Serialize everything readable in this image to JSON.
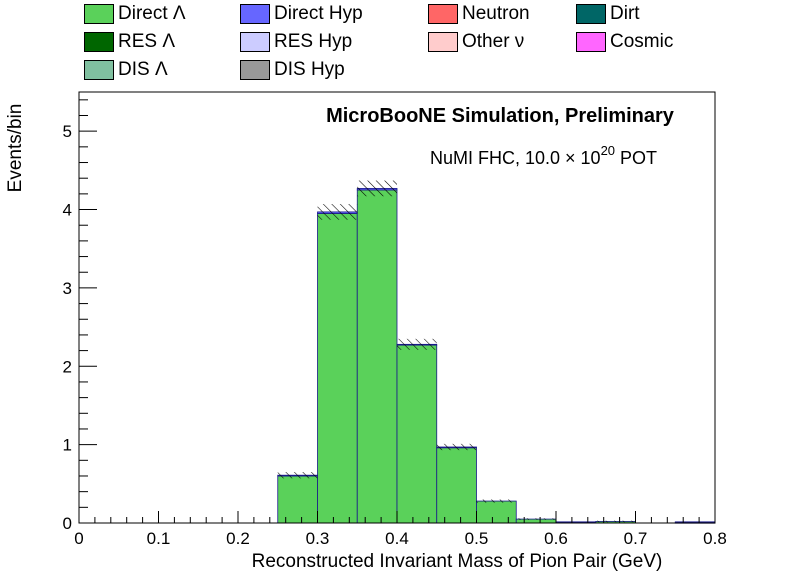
{
  "chart_data": {
    "type": "bar",
    "title": "MicroBooNE Simulation, Preliminary",
    "subtitle_prefix": "NuMI FHC, 10.0  × 10",
    "subtitle_exp": "20",
    "subtitle_suffix": " POT",
    "xlabel": "Reconstructed Invariant Mass of Pion Pair (GeV)",
    "ylabel": "Events/bin",
    "xlim": [
      0,
      0.8
    ],
    "ylim": [
      0,
      5.5
    ],
    "xticks": [
      "0",
      "0.1",
      "0.2",
      "0.3",
      "0.4",
      "0.5",
      "0.6",
      "0.7",
      "0.8"
    ],
    "yticks": [
      "0",
      "1",
      "2",
      "3",
      "4",
      "5"
    ],
    "bin_edges": [
      0,
      0.05,
      0.1,
      0.15,
      0.2,
      0.25,
      0.3,
      0.35,
      0.4,
      0.45,
      0.5,
      0.55,
      0.6,
      0.65,
      0.7,
      0.75,
      0.8
    ],
    "series": [
      {
        "name": "Direct Λ",
        "color": "#5ad15a",
        "values": [
          0,
          0,
          0,
          0,
          0,
          0.6,
          3.95,
          4.25,
          2.27,
          0.96,
          0.28,
          0.05,
          0.01,
          0.02,
          0,
          0.005
        ]
      },
      {
        "name": "Direct Hyp",
        "color": "#6666ff",
        "values": [
          0,
          0,
          0,
          0,
          0,
          0.01,
          0.02,
          0.02,
          0.01,
          0.01,
          0,
          0,
          0.005,
          0,
          0,
          0.01
        ]
      },
      {
        "name": "Neutron",
        "color": "#ff6666",
        "values": [
          0,
          0,
          0,
          0,
          0,
          0,
          0,
          0,
          0,
          0,
          0,
          0,
          0,
          0,
          0,
          0
        ]
      },
      {
        "name": "Dirt",
        "color": "#006666",
        "values": [
          0,
          0,
          0,
          0,
          0,
          0,
          0,
          0,
          0,
          0,
          0,
          0,
          0,
          0,
          0,
          0
        ]
      },
      {
        "name": "RES Λ",
        "color": "#006600",
        "values": [
          0,
          0,
          0,
          0,
          0,
          0,
          0,
          0,
          0,
          0,
          0,
          0,
          0,
          0,
          0,
          0
        ]
      },
      {
        "name": "RES Hyp",
        "color": "#ccccff",
        "values": [
          0,
          0,
          0,
          0,
          0,
          0,
          0,
          0,
          0,
          0,
          0,
          0,
          0,
          0,
          0,
          0
        ]
      },
      {
        "name": "Other ν",
        "color": "#ffcccc",
        "values": [
          0,
          0,
          0,
          0,
          0,
          0,
          0,
          0,
          0,
          0,
          0,
          0,
          0,
          0,
          0,
          0
        ]
      },
      {
        "name": "Cosmic",
        "color": "#ff66ff",
        "values": [
          0,
          0,
          0,
          0,
          0,
          0,
          0,
          0,
          0,
          0,
          0,
          0,
          0,
          0,
          0,
          0
        ]
      },
      {
        "name": "DIS Λ",
        "color": "#80c0a0",
        "values": [
          0,
          0,
          0,
          0,
          0,
          0,
          0,
          0,
          0,
          0,
          0,
          0,
          0,
          0,
          0,
          0
        ]
      },
      {
        "name": "DIS Hyp",
        "color": "#999999",
        "values": [
          0,
          0,
          0,
          0,
          0,
          0,
          0,
          0,
          0,
          0,
          0,
          0,
          0,
          0,
          0,
          0
        ]
      }
    ],
    "uncertainty": [
      0,
      0,
      0,
      0,
      0,
      0.04,
      0.1,
      0.1,
      0.07,
      0.04,
      0.02,
      0.01,
      0,
      0.01,
      0,
      0
    ],
    "legend_position": "top, above plot"
  }
}
